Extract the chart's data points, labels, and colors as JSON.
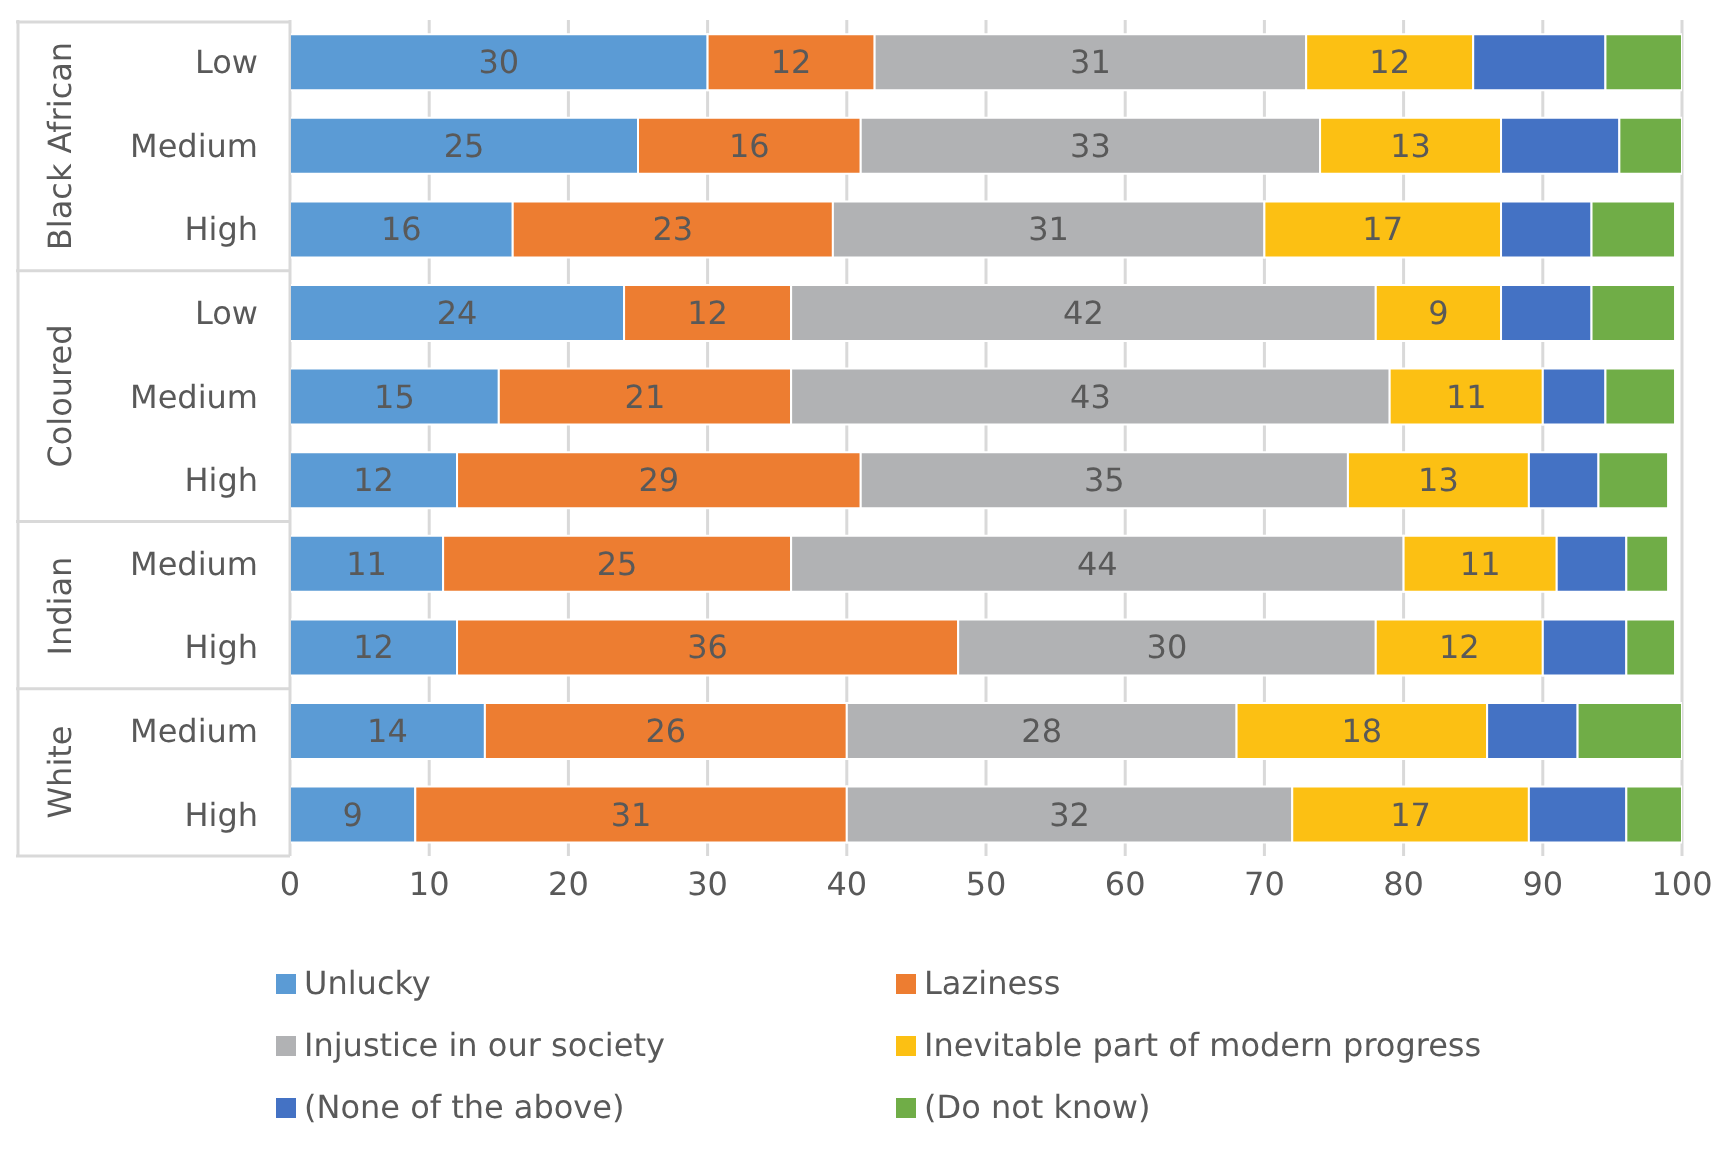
{
  "chart_data": {
    "type": "bar",
    "orientation": "horizontal",
    "stacked": true,
    "categories": [
      "Low",
      "Medium",
      "High",
      "Low",
      "Medium",
      "High",
      "Medium",
      "High",
      "Medium",
      "High"
    ],
    "annotations": [
      "Black African",
      "Coloured",
      "Indian",
      "White"
    ],
    "series": [
      {
        "name": "Unlucky",
        "color": "#5b9bd5",
        "values": [
          30,
          25,
          16,
          24,
          15,
          12,
          11,
          12,
          14,
          9
        ],
        "value_labels": [
          "30",
          "25",
          "16",
          "24",
          "15",
          "12",
          "11",
          "12",
          "14",
          "9"
        ]
      },
      {
        "name": "Laziness",
        "color": "#ed7d31",
        "values": [
          12,
          16,
          23,
          12,
          21,
          29,
          25,
          36,
          26,
          31
        ],
        "value_labels": [
          "12",
          "16",
          "23",
          "12",
          "21",
          "29",
          "25",
          "36",
          "26",
          "31"
        ]
      },
      {
        "name": "Injustice in our society",
        "color": "#b1b2b4",
        "values": [
          31,
          33,
          31,
          42,
          43,
          35,
          44,
          30,
          28,
          32
        ],
        "value_labels": [
          "31",
          "33",
          "31",
          "42",
          "43",
          "35",
          "44",
          "30",
          "28",
          "32"
        ]
      },
      {
        "name": "Inevitable part of modern progress",
        "color": "#fcc013",
        "values": [
          12,
          13,
          17,
          9,
          11,
          13,
          11,
          12,
          18,
          17
        ],
        "value_labels": [
          "12",
          "13",
          "17",
          "9",
          "11",
          "13",
          "11",
          "12",
          "18",
          "17"
        ]
      },
      {
        "name": "(None of the above)",
        "color": "#4472c4",
        "values": [
          9.5,
          8.5,
          6.5,
          6.5,
          4.5,
          5,
          5,
          6,
          6.5,
          7
        ]
      },
      {
        "name": "(Do not know)",
        "color": "#70ad47",
        "values": [
          5.5,
          4.5,
          6,
          6,
          5,
          5,
          3,
          3.5,
          7.5,
          4
        ]
      }
    ],
    "xlim": [
      0,
      100
    ],
    "xticks": [
      0,
      10,
      20,
      30,
      40,
      50,
      60,
      70,
      80,
      90,
      100
    ],
    "grid": "x",
    "legend": "bottom"
  }
}
